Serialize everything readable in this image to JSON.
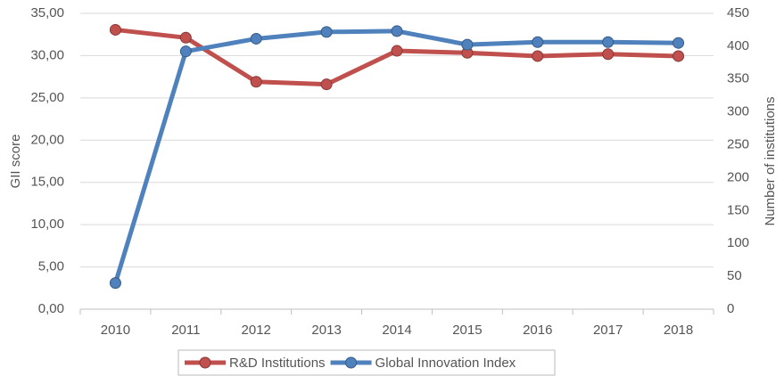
{
  "chart_data": {
    "type": "line",
    "categories": [
      "2010",
      "2011",
      "2012",
      "2013",
      "2014",
      "2015",
      "2016",
      "2017",
      "2018"
    ],
    "series": [
      {
        "name": "R&D Institutions",
        "color": "#c0504d",
        "axis": "y2",
        "values": [
          425,
          413,
          346,
          342,
          393,
          390,
          385,
          388,
          385
        ]
      },
      {
        "name": "Global Innovation Index",
        "color": "#4f81bd",
        "values": [
          3.1,
          30.5,
          32.0,
          32.8,
          32.9,
          31.3,
          31.6,
          31.6,
          31.5
        ]
      }
    ],
    "ylabel": "GII score",
    "y2label": "Number of institutions",
    "ylim": [
      0,
      35
    ],
    "yticks": [
      {
        "value": 0,
        "label": "0,00"
      },
      {
        "value": 5,
        "label": "5,00"
      },
      {
        "value": 10,
        "label": "10,00"
      },
      {
        "value": 15,
        "label": "15,00"
      },
      {
        "value": 20,
        "label": "20,00"
      },
      {
        "value": 25,
        "label": "25,00"
      },
      {
        "value": 30,
        "label": "30,00"
      },
      {
        "value": 35,
        "label": "35,00"
      }
    ],
    "y2lim": [
      0,
      450
    ],
    "y2ticks": [
      0,
      50,
      100,
      150,
      200,
      250,
      300,
      350,
      400,
      450
    ],
    "grid": true,
    "legend": "bottom"
  }
}
